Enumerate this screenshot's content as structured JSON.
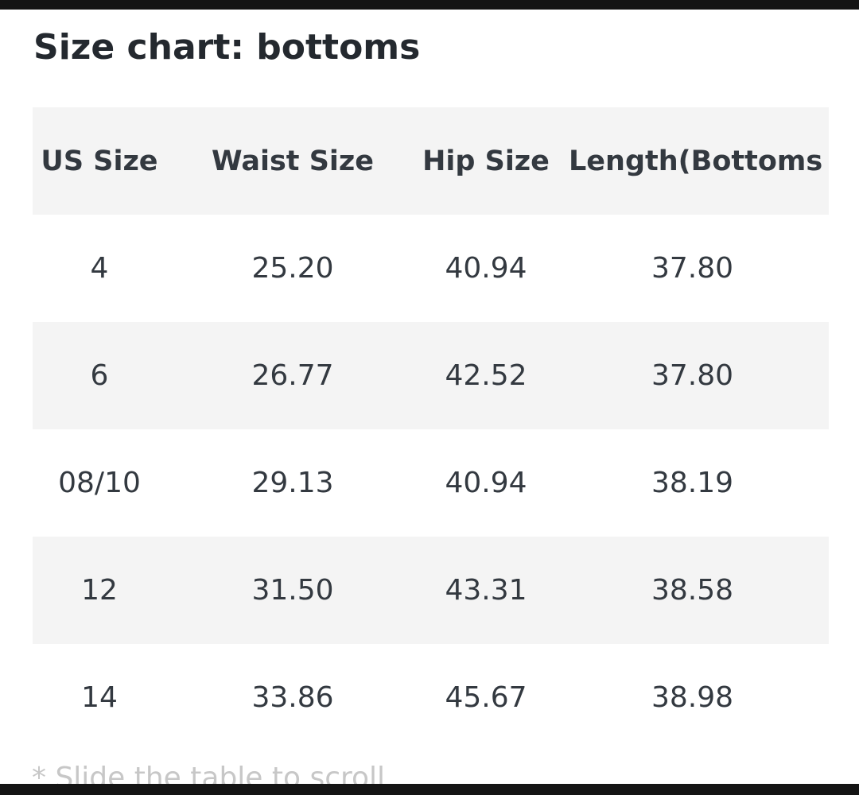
{
  "title": "Size chart: bottoms",
  "table": {
    "headers": [
      "US Size",
      "Waist Size",
      "Hip Size",
      "Length(Bottoms"
    ],
    "rows": [
      [
        "4",
        "25.20",
        "40.94",
        "37.80"
      ],
      [
        "6",
        "26.77",
        "42.52",
        "37.80"
      ],
      [
        "08/10",
        "29.13",
        "40.94",
        "38.19"
      ],
      [
        "12",
        "31.50",
        "43.31",
        "38.58"
      ],
      [
        "14",
        "33.86",
        "45.67",
        "38.98"
      ]
    ]
  },
  "hint": "* Slide the table to scroll"
}
